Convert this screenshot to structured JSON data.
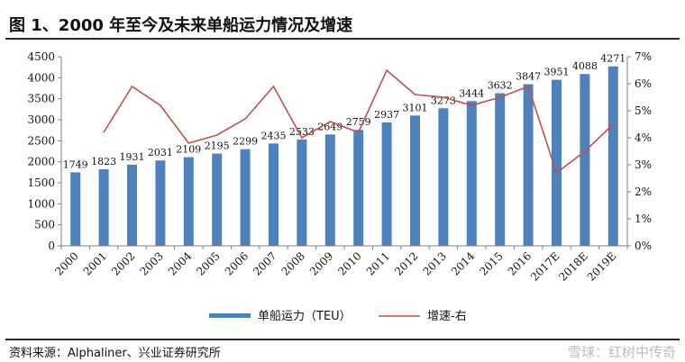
{
  "header": {
    "title": "图 1、2000 年至今及未来单船运力情况及增速"
  },
  "footer": {
    "source": "资料来源：Alphaliner、兴业证券研究所",
    "watermark": "雪球：红树中传奇"
  },
  "colors": {
    "bar": "#4f81bd",
    "line": "#c0504d",
    "axis": "#7f7f7f",
    "text": "#111111"
  },
  "chart_data": {
    "type": "bar",
    "categories": [
      "2000",
      "2001",
      "2002",
      "2003",
      "2004",
      "2005",
      "2006",
      "2007",
      "2008",
      "2009",
      "2010",
      "2011",
      "2012",
      "2013",
      "2014",
      "2015",
      "2016",
      "2017E",
      "2018E",
      "2019E"
    ],
    "series": [
      {
        "name": "单船运力（TEU）",
        "type": "bar",
        "axis": "left",
        "values": [
          1749,
          1823,
          1931,
          2031,
          2109,
          2195,
          2299,
          2435,
          2533,
          2649,
          2759,
          2937,
          3101,
          3273,
          3444,
          3632,
          3847,
          3951,
          4088,
          4271
        ]
      },
      {
        "name": "增速-右",
        "type": "line",
        "axis": "right",
        "values": [
          null,
          4.2,
          5.9,
          5.2,
          3.8,
          4.1,
          4.7,
          5.9,
          4.0,
          4.6,
          4.2,
          6.5,
          5.6,
          5.5,
          5.2,
          5.5,
          5.9,
          2.7,
          3.5,
          4.5
        ]
      }
    ],
    "ylim_left": [
      0,
      4500
    ],
    "yticks_left": [
      "0",
      "500",
      "1000",
      "1500",
      "2000",
      "2500",
      "3000",
      "3500",
      "4000",
      "4500"
    ],
    "ylim_right": [
      0,
      7
    ],
    "yticks_right": [
      "0%",
      "1%",
      "2%",
      "3%",
      "4%",
      "5%",
      "6%",
      "7%"
    ],
    "legend_position": "bottom",
    "data_labels": true,
    "grid": false
  }
}
